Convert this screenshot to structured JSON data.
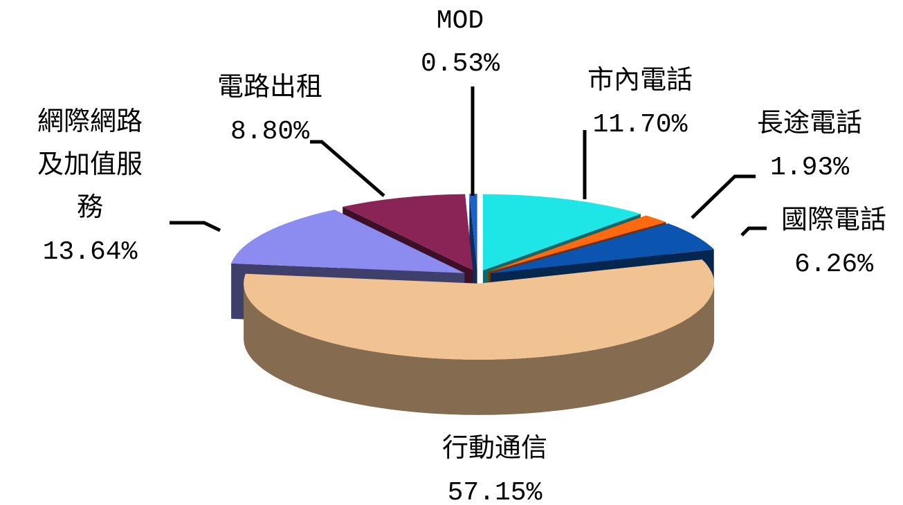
{
  "chart_data": {
    "type": "pie3d",
    "categories": [
      "市內電話",
      "長途電話",
      "國際電話",
      "行動通信",
      "網際網路及加值服務",
      "電路出租",
      "MOD"
    ],
    "values": [
      11.7,
      1.93,
      6.26,
      57.15,
      13.64,
      8.8,
      0.53
    ],
    "value_labels": [
      "11.70%",
      "1.93%",
      "6.26%",
      "57.15%",
      "13.64%",
      "8.80%",
      "0.53%"
    ],
    "colors": [
      "#1fe6e6",
      "#ff6a10",
      "#0b55b0",
      "#f2c392",
      "#8c8cf0",
      "#8a2456",
      "#1a62c8"
    ]
  }
}
